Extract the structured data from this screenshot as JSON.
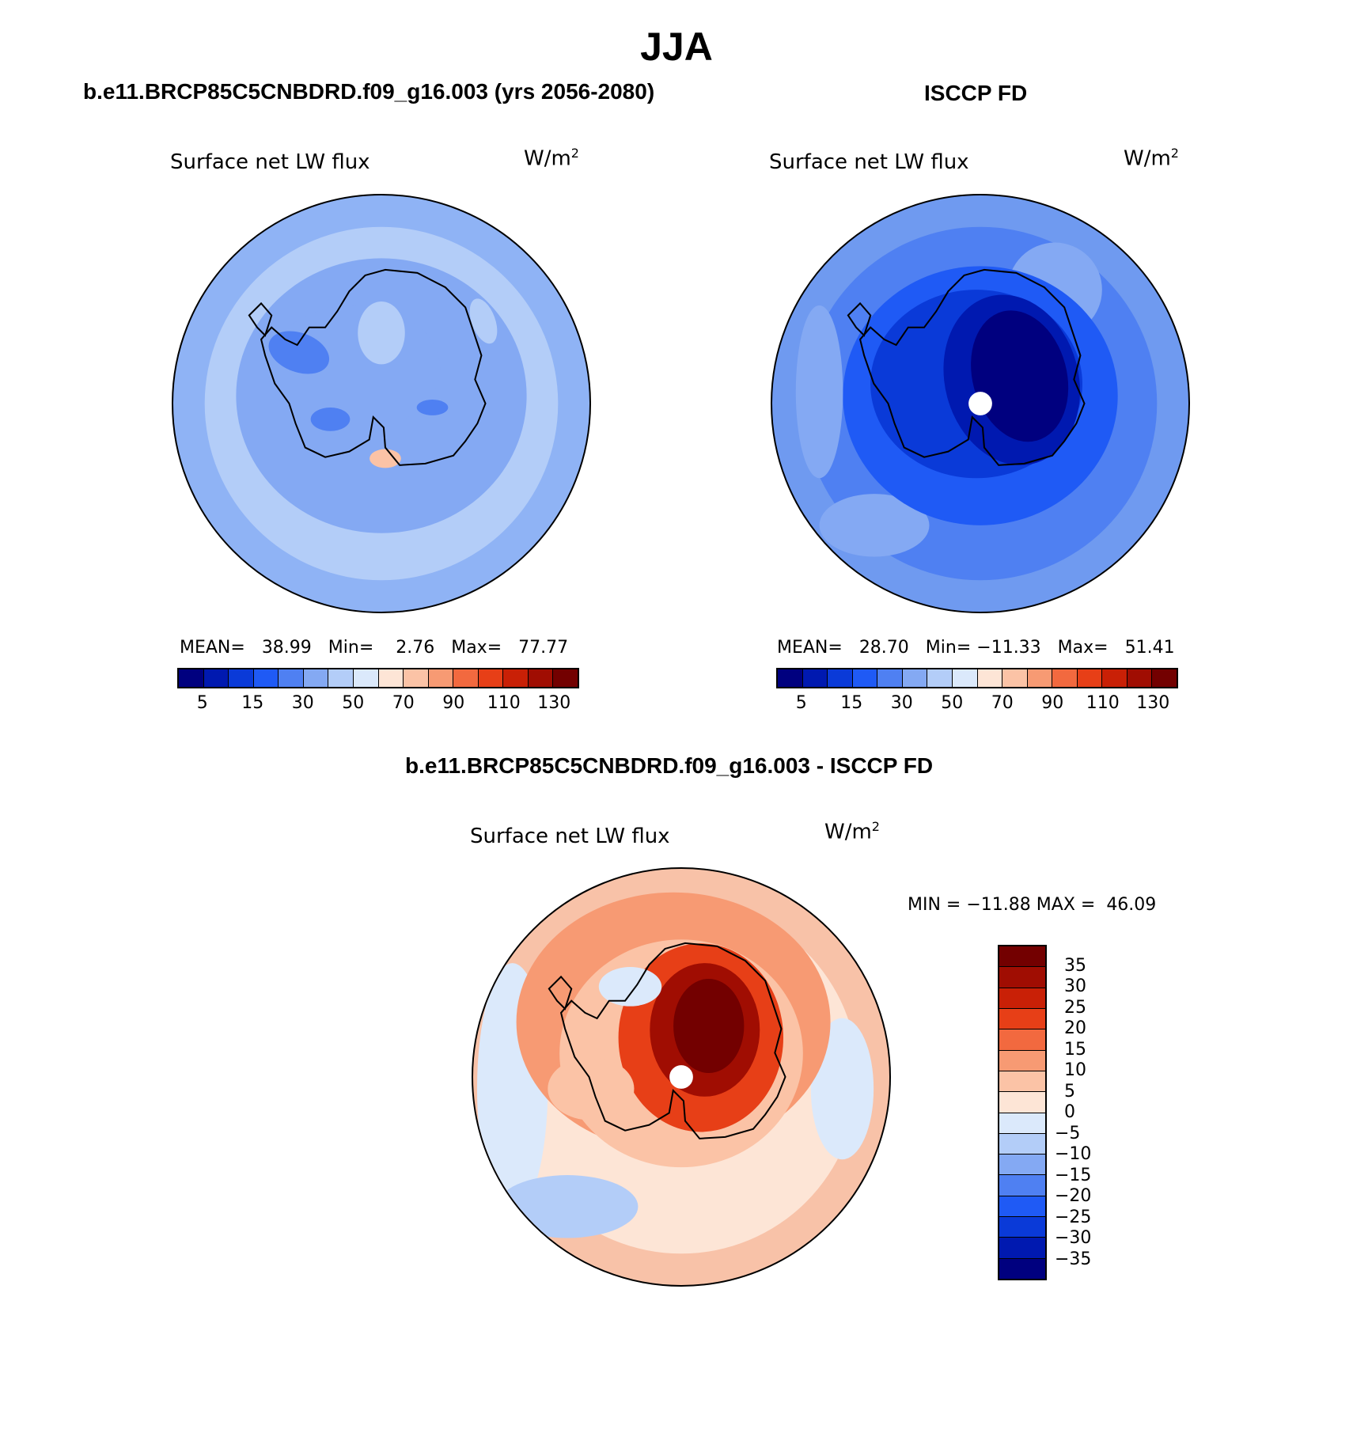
{
  "title": "JJA",
  "chart_data": [
    {
      "type": "heatmap",
      "case_title": "b.e11.BRCP85C5CNBDRD.f09_g16.003 (yrs 2056-2080)",
      "variable": "Surface net LW flux",
      "units": "W/m",
      "units_sup": "2",
      "stats": {
        "mean_label": "MEAN=",
        "mean": "38.99",
        "min_label": "Min=",
        "min": "2.76",
        "max_label": "Max=",
        "max": "77.77"
      },
      "colorbar_ticks": [
        "5",
        "15",
        "30",
        "50",
        "70",
        "90",
        "110",
        "130"
      ],
      "background_color": "#8fb3f5"
    },
    {
      "type": "heatmap",
      "case_title": "ISCCP FD",
      "variable": "Surface net LW flux",
      "units": "W/m",
      "units_sup": "2",
      "stats": {
        "mean_label": "MEAN=",
        "mean": "28.70",
        "min_label": "Min=",
        "min": "−11.33",
        "max_label": "Max=",
        "max": "51.41"
      },
      "colorbar_ticks": [
        "5",
        "15",
        "30",
        "50",
        "70",
        "90",
        "110",
        "130"
      ],
      "background_color": "#6f9af0"
    },
    {
      "type": "heatmap",
      "case_title": "b.e11.BRCP85C5CNBDRD.f09_g16.003 - ISCCP FD",
      "variable": "Surface net LW flux",
      "units": "W/m",
      "units_sup": "2",
      "stats": {
        "min_label": "MIN =",
        "min": "−11.88",
        "max_label": "MAX =",
        "max": "46.09"
      },
      "colorbar_ticks": [
        "35",
        "30",
        "25",
        "20",
        "15",
        "10",
        "5",
        "0",
        "−5",
        "−10",
        "−15",
        "−20",
        "−25",
        "−30",
        "−35"
      ],
      "background_color": "#f8c2a8"
    }
  ],
  "colorbar_colors": [
    "#00007f",
    "#0019b0",
    "#0a3ad8",
    "#1f5af5",
    "#4f80f2",
    "#84a9f3",
    "#b3cdf8",
    "#dbe9fb",
    "#fde5d6",
    "#fbc3a6",
    "#f79a73",
    "#f2693f",
    "#e73f17",
    "#c92006",
    "#a00d02",
    "#730000"
  ],
  "diff_colorbar_colors": [
    "#730000",
    "#a00d02",
    "#c92006",
    "#e73f17",
    "#f2693f",
    "#f79a73",
    "#fbc3a6",
    "#fde5d6",
    "#dbe9fb",
    "#b3cdf8",
    "#84a9f3",
    "#4f80f2",
    "#1f5af5",
    "#0a3ad8",
    "#0019b0",
    "#00007f"
  ]
}
